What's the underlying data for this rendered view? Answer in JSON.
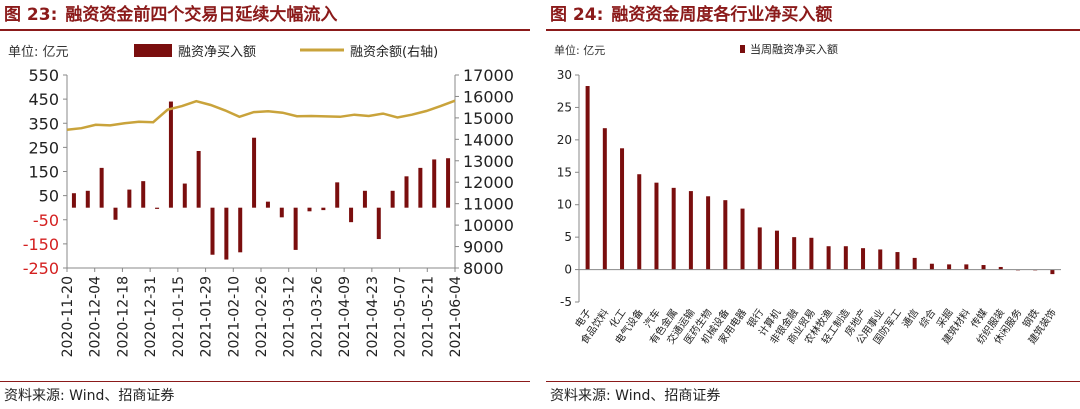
{
  "charts": {
    "left": {
      "figure_label": "图 23:",
      "title": "融资资金前四个交易日延续大幅流入",
      "unit": "单位: 亿元",
      "source": "资料来源: Wind、招商证券"
    },
    "right": {
      "figure_label": "图 24:",
      "title": "融资资金周度各行业净买入额",
      "unit": "单位: 亿元",
      "source": "资料来源: Wind、招商证券"
    }
  },
  "colors": {
    "title": "#8b1a1a",
    "bar": "#7a0e0e",
    "line": "#c9a33b",
    "negative_tick": "#d42020",
    "axis": "#888888"
  },
  "chart_data": [
    {
      "type": "bar+line",
      "series": [
        {
          "name": "融资净买入额",
          "type": "bar",
          "axis": "left",
          "values": [
            60,
            70,
            165,
            -50,
            75,
            110,
            -5,
            440,
            100,
            235,
            -195,
            -215,
            -185,
            290,
            25,
            -40,
            -175,
            -15,
            -10,
            105,
            -60,
            70,
            -130,
            70,
            130,
            165,
            200,
            205
          ]
        },
        {
          "name": "融资余额(右轴)",
          "type": "line",
          "axis": "right",
          "values": [
            14450,
            14520,
            14680,
            14650,
            14750,
            14820,
            14800,
            15380,
            15550,
            15780,
            15600,
            15350,
            15050,
            15270,
            15310,
            15240,
            15080,
            15090,
            15070,
            15050,
            15150,
            15090,
            15200,
            15020,
            15150,
            15320,
            15550,
            15800
          ]
        }
      ],
      "x_tick_labels": [
        "2020-11-20",
        "2020-12-04",
        "2020-12-18",
        "2020-12-31",
        "2021-01-15",
        "2021-01-29",
        "2021-02-10",
        "2021-02-26",
        "2021-03-12",
        "2021-03-26",
        "2021-04-09",
        "2021-04-23",
        "2021-05-07",
        "2021-05-21",
        "2021-06-04"
      ],
      "y_left": {
        "ticks": [
          550,
          450,
          350,
          250,
          150,
          50,
          -50,
          -150,
          -250
        ],
        "ylim": [
          -250,
          550
        ]
      },
      "y_right": {
        "ticks": [
          17000,
          16000,
          15000,
          14000,
          13000,
          12000,
          11000,
          10000,
          9000,
          8000
        ],
        "ylim": [
          8000,
          17000
        ]
      },
      "legend_placement": "top",
      "grid": false
    },
    {
      "type": "bar",
      "series": [
        {
          "name": "当周融资净买入额"
        }
      ],
      "categories": [
        "电子",
        "食品饮料",
        "化工",
        "电气设备",
        "汽车",
        "有色金属",
        "交通运输",
        "医药生物",
        "机械设备",
        "家用电器",
        "银行",
        "计算机",
        "非银金融",
        "商业贸易",
        "农林牧渔",
        "轻工制造",
        "房地产",
        "公用事业",
        "国防军工",
        "通信",
        "综合",
        "采掘",
        "建筑材料",
        "传媒",
        "纺织服装",
        "休闲服务",
        "钢铁",
        "建筑装饰"
      ],
      "values": [
        28.3,
        21.8,
        18.7,
        14.7,
        13.4,
        12.6,
        12.1,
        11.3,
        10.7,
        9.4,
        6.5,
        6.0,
        5.0,
        4.9,
        3.6,
        3.6,
        3.3,
        3.1,
        2.7,
        1.8,
        0.9,
        0.8,
        0.8,
        0.7,
        0.4,
        0.0,
        0.0,
        -0.7
      ],
      "y_ticks": [
        30,
        25,
        20,
        15,
        10,
        5,
        0,
        -5
      ],
      "ylim": [
        -5,
        30
      ],
      "legend_placement": "top-left",
      "grid": false
    }
  ]
}
